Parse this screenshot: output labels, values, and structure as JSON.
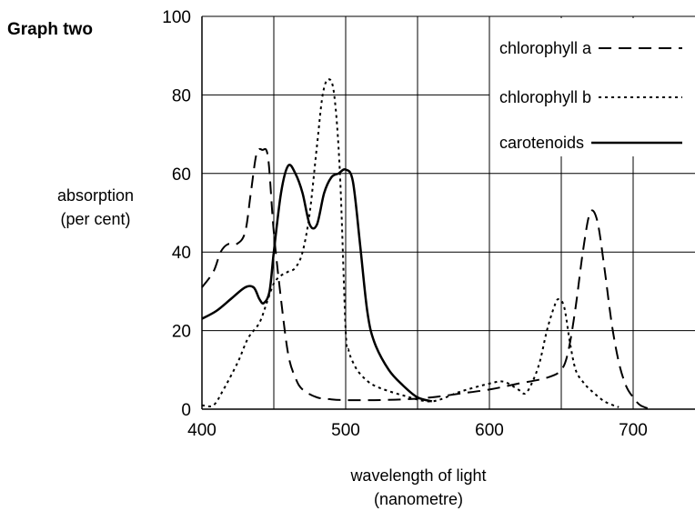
{
  "title": "Graph two",
  "chart_data": {
    "type": "line",
    "title": "Graph two",
    "xlabel": [
      "wavelength of light",
      "(nanometre)"
    ],
    "ylabel": [
      "absorption",
      "(per cent)"
    ],
    "xlim": [
      400,
      750
    ],
    "ylim": [
      0,
      100
    ],
    "xticks": [
      400,
      500,
      600,
      700
    ],
    "yticks": [
      0,
      20,
      40,
      60,
      80,
      100
    ],
    "grid": true,
    "legend_position": "top-right",
    "series": [
      {
        "name": "chlorophyll a",
        "line_style": "dashed",
        "x": [
          400,
          408,
          413,
          418,
          424,
          430,
          434,
          438,
          442,
          446,
          450,
          455,
          460,
          465,
          470,
          480,
          490,
          500,
          520,
          540,
          560,
          580,
          600,
          620,
          640,
          650,
          655,
          660,
          665,
          670,
          675,
          680,
          685,
          690,
          695,
          700,
          705,
          712
        ],
        "y": [
          31,
          35,
          40,
          42,
          42,
          45,
          55,
          65,
          66,
          64,
          45,
          28,
          14,
          8,
          5,
          3,
          2.5,
          2.3,
          2.3,
          2.5,
          3,
          4,
          5,
          6.5,
          8,
          10,
          15,
          26,
          40,
          50,
          48,
          36,
          22,
          12,
          6,
          3,
          1,
          0
        ]
      },
      {
        "name": "chlorophyll b",
        "line_style": "dotted",
        "x": [
          400,
          408,
          415,
          425,
          432,
          440,
          445,
          450,
          455,
          460,
          465,
          470,
          475,
          480,
          484,
          488,
          492,
          496,
          500,
          502,
          505,
          510,
          520,
          540,
          560,
          580,
          600,
          610,
          620,
          625,
          630,
          635,
          640,
          645,
          648,
          652,
          656,
          660,
          665,
          670,
          680,
          690
        ],
        "y": [
          1,
          1,
          5,
          12,
          18,
          22,
          27,
          32,
          34,
          35,
          36,
          40,
          50,
          67,
          80,
          84,
          80,
          60,
          20,
          15,
          12,
          9,
          6,
          3.5,
          2,
          4.5,
          6.5,
          7,
          5,
          4,
          7,
          12,
          20,
          26,
          28,
          26,
          17,
          10,
          7,
          5,
          2,
          0.5
        ]
      },
      {
        "name": "carotenoids",
        "line_style": "solid",
        "x": [
          400,
          410,
          420,
          430,
          436,
          440,
          443,
          447,
          450,
          455,
          460,
          465,
          470,
          475,
          480,
          485,
          490,
          495,
          500,
          505,
          510,
          515,
          520,
          530,
          540,
          550,
          560
        ],
        "y": [
          23,
          25,
          28,
          31,
          31,
          28,
          27,
          30,
          40,
          55,
          62,
          60,
          55,
          47,
          47,
          55,
          59,
          60,
          61,
          58,
          42,
          25,
          17,
          10,
          6,
          3,
          2
        ]
      }
    ]
  }
}
